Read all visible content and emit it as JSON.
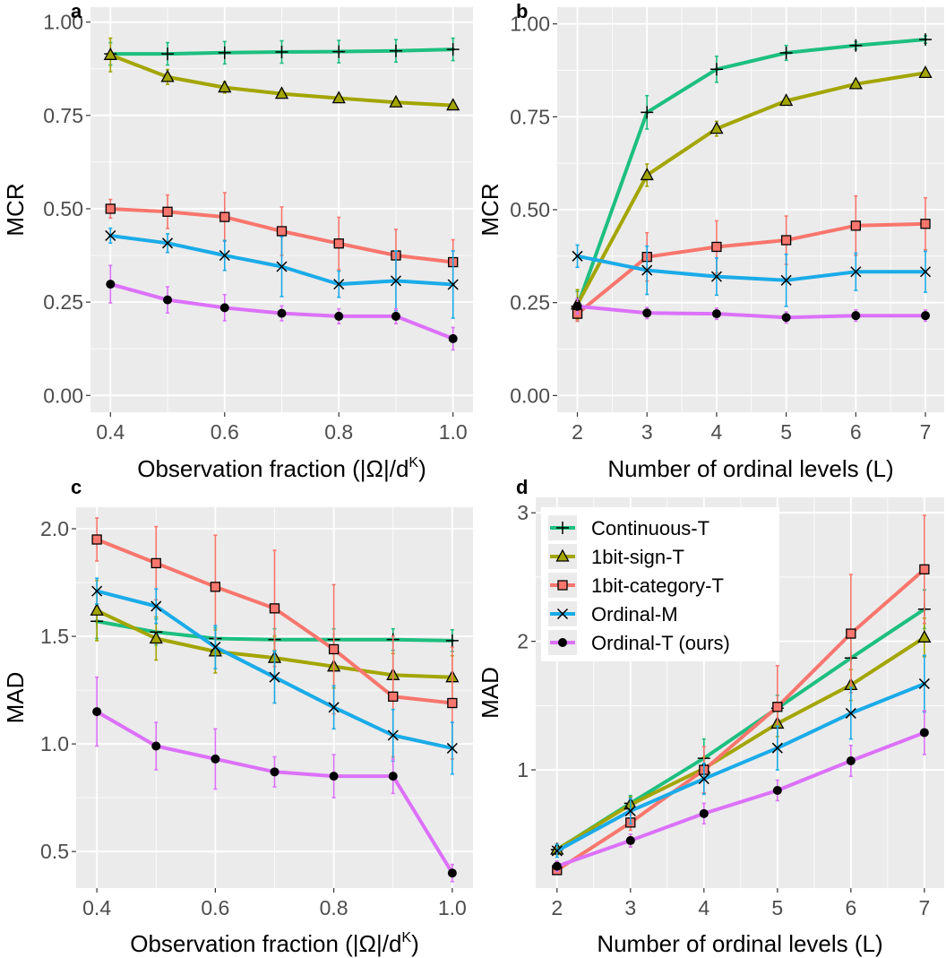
{
  "colors": {
    "Continuous-T": "#1dbf80",
    "1bit-sign-T": "#a3a500",
    "1bit-category-T": "#f8766d",
    "Ordinal-M": "#1aabe8",
    "Ordinal-T (ours)": "#dc71fa",
    "panel_bg": "#ebebeb",
    "grid": "#ffffff"
  },
  "legend": {
    "panel": "d",
    "entries": [
      {
        "label": "Continuous-T",
        "marker": "plus"
      },
      {
        "label": "1bit-sign-T",
        "marker": "triangle"
      },
      {
        "label": "1bit-category-T",
        "marker": "square"
      },
      {
        "label": "Ordinal-M",
        "marker": "cross"
      },
      {
        "label": "Ordinal-T (ours)",
        "marker": "dot"
      }
    ]
  },
  "chart_data": [
    {
      "panel": "a",
      "type": "line",
      "xlabel": "Observation fraction (|Ω|/d",
      "xlabel_sup": "K",
      "xlabel_close": ")",
      "ylabel": "MCR",
      "xlim": [
        0.365,
        1.035
      ],
      "ylim": [
        -0.045,
        1.04
      ],
      "xticks": [
        0.4,
        0.6,
        0.8,
        1.0
      ],
      "xtick_labels": [
        "0.4",
        "0.6",
        "0.8",
        "1.0"
      ],
      "yticks": [
        0.0,
        0.25,
        0.5,
        0.75,
        1.0
      ],
      "ytick_labels": [
        "0.00",
        "0.25",
        "0.50",
        "0.75",
        "1.00"
      ],
      "x": [
        0.4,
        0.5,
        0.6,
        0.7,
        0.8,
        0.9,
        1.0
      ],
      "series": [
        {
          "name": "Continuous-T",
          "marker": "plus",
          "values": [
            0.915,
            0.915,
            0.918,
            0.92,
            0.921,
            0.923,
            0.927
          ],
          "err": [
            0.03,
            0.03,
            0.03,
            0.03,
            0.03,
            0.03,
            0.03
          ]
        },
        {
          "name": "1bit-sign-T",
          "marker": "triangle",
          "values": [
            0.912,
            0.853,
            0.825,
            0.808,
            0.796,
            0.785,
            0.777
          ],
          "err": [
            0.045,
            0.02,
            0.015,
            0.01,
            0.01,
            0.01,
            0.01
          ]
        },
        {
          "name": "1bit-category-T",
          "marker": "square",
          "values": [
            0.5,
            0.492,
            0.478,
            0.44,
            0.407,
            0.375,
            0.357
          ],
          "err": [
            0.025,
            0.045,
            0.065,
            0.065,
            0.07,
            0.07,
            0.06
          ]
        },
        {
          "name": "Ordinal-M",
          "marker": "cross",
          "values": [
            0.428,
            0.408,
            0.375,
            0.345,
            0.298,
            0.307,
            0.297
          ],
          "err": [
            0.02,
            0.025,
            0.04,
            0.08,
            0.035,
            0.08,
            0.09
          ]
        },
        {
          "name": "Ordinal-T (ours)",
          "marker": "dot",
          "values": [
            0.298,
            0.256,
            0.235,
            0.22,
            0.212,
            0.212,
            0.152
          ],
          "err": [
            0.05,
            0.035,
            0.035,
            0.02,
            0.02,
            0.02,
            0.03
          ]
        }
      ]
    },
    {
      "panel": "b",
      "type": "line",
      "xlabel": "Number of ordinal levels (L)",
      "ylabel": "MCR",
      "xlim": [
        1.71,
        7.27
      ],
      "ylim": [
        -0.045,
        1.045
      ],
      "xticks": [
        2,
        3,
        4,
        5,
        6,
        7
      ],
      "xtick_labels": [
        "2",
        "3",
        "4",
        "5",
        "6",
        "7"
      ],
      "yticks": [
        0.0,
        0.25,
        0.5,
        0.75,
        1.0
      ],
      "ytick_labels": [
        "0.00",
        "0.25",
        "0.50",
        "0.75",
        "1.00"
      ],
      "x": [
        2,
        3,
        4,
        5,
        6,
        7
      ],
      "series": [
        {
          "name": "Continuous-T",
          "marker": "plus",
          "values": [
            0.24,
            0.762,
            0.878,
            0.922,
            0.942,
            0.958
          ],
          "err": [
            0.04,
            0.045,
            0.035,
            0.02,
            0.01,
            0.01
          ]
        },
        {
          "name": "1bit-sign-T",
          "marker": "triangle",
          "values": [
            0.245,
            0.593,
            0.718,
            0.793,
            0.838,
            0.868
          ],
          "err": [
            0.04,
            0.03,
            0.02,
            0.01,
            0.01,
            0.01
          ]
        },
        {
          "name": "1bit-category-T",
          "marker": "square",
          "values": [
            0.22,
            0.373,
            0.4,
            0.418,
            0.457,
            0.462
          ],
          "err": [
            0.02,
            0.065,
            0.07,
            0.065,
            0.08,
            0.07
          ]
        },
        {
          "name": "Ordinal-M",
          "marker": "cross",
          "values": [
            0.375,
            0.337,
            0.32,
            0.31,
            0.333,
            0.333
          ],
          "err": [
            0.03,
            0.065,
            0.05,
            0.07,
            0.05,
            0.055
          ]
        },
        {
          "name": "Ordinal-T (ours)",
          "marker": "dot",
          "values": [
            0.24,
            0.222,
            0.22,
            0.21,
            0.215,
            0.215
          ],
          "err": [
            0.02,
            0.015,
            0.015,
            0.015,
            0.015,
            0.015
          ]
        }
      ]
    },
    {
      "panel": "c",
      "type": "line",
      "xlabel": "Observation fraction (|Ω|/d",
      "xlabel_sup": "K",
      "xlabel_close": ")",
      "ylabel": "MAD",
      "xlim": [
        0.365,
        1.035
      ],
      "ylim": [
        0.33,
        2.1
      ],
      "xticks": [
        0.4,
        0.6,
        0.8,
        1.0
      ],
      "xtick_labels": [
        "0.4",
        "0.6",
        "0.8",
        "1.0"
      ],
      "yticks": [
        0.5,
        1.0,
        1.5,
        2.0
      ],
      "ytick_labels": [
        "0.5",
        "1.0",
        "1.5",
        "2.0"
      ],
      "x": [
        0.4,
        0.5,
        0.6,
        0.7,
        0.8,
        0.9,
        1.0
      ],
      "series": [
        {
          "name": "Continuous-T",
          "marker": "plus",
          "values": [
            1.57,
            1.52,
            1.49,
            1.485,
            1.485,
            1.485,
            1.48
          ],
          "err": [
            0.08,
            0.06,
            0.05,
            0.05,
            0.05,
            0.05,
            0.05
          ]
        },
        {
          "name": "1bit-sign-T",
          "marker": "triangle",
          "values": [
            1.62,
            1.49,
            1.43,
            1.4,
            1.36,
            1.32,
            1.31
          ],
          "err": [
            0.14,
            0.1,
            0.1,
            0.1,
            0.1,
            0.1,
            0.1
          ]
        },
        {
          "name": "1bit-category-T",
          "marker": "square",
          "values": [
            1.95,
            1.84,
            1.73,
            1.63,
            1.44,
            1.22,
            1.19
          ],
          "err": [
            0.1,
            0.17,
            0.24,
            0.27,
            0.3,
            0.28,
            0.26
          ]
        },
        {
          "name": "Ordinal-M",
          "marker": "cross",
          "values": [
            1.71,
            1.64,
            1.45,
            1.31,
            1.17,
            1.04,
            0.98
          ],
          "err": [
            0.06,
            0.08,
            0.1,
            0.12,
            0.1,
            0.12,
            0.12
          ]
        },
        {
          "name": "Ordinal-T (ours)",
          "marker": "dot",
          "values": [
            1.15,
            0.99,
            0.93,
            0.87,
            0.85,
            0.85,
            0.4
          ],
          "err": [
            0.16,
            0.11,
            0.14,
            0.07,
            0.1,
            0.08,
            0.04
          ]
        }
      ]
    },
    {
      "panel": "d",
      "type": "line",
      "xlabel": "Number of ordinal levels (L)",
      "ylabel": "MAD",
      "xlim": [
        1.71,
        7.27
      ],
      "ylim": [
        0.08,
        3.12
      ],
      "xticks": [
        2,
        3,
        4,
        5,
        6,
        7
      ],
      "xtick_labels": [
        "2",
        "3",
        "4",
        "5",
        "6",
        "7"
      ],
      "yticks": [
        1,
        2,
        3
      ],
      "ytick_labels": [
        "1",
        "2",
        "3"
      ],
      "x": [
        2,
        3,
        4,
        5,
        6,
        7
      ],
      "series": [
        {
          "name": "Continuous-T",
          "marker": "plus",
          "values": [
            0.38,
            0.74,
            1.09,
            1.48,
            1.87,
            2.25
          ],
          "err": [
            0.04,
            0.06,
            0.15,
            0.1,
            0.2,
            0.15
          ]
        },
        {
          "name": "1bit-sign-T",
          "marker": "triangle",
          "values": [
            0.38,
            0.73,
            1.01,
            1.36,
            1.66,
            2.03
          ],
          "err": [
            0.04,
            0.06,
            0.09,
            0.1,
            0.12,
            0.15
          ]
        },
        {
          "name": "1bit-category-T",
          "marker": "square",
          "values": [
            0.22,
            0.59,
            1.0,
            1.49,
            2.06,
            2.56
          ],
          "err": [
            0.03,
            0.06,
            0.18,
            0.32,
            0.46,
            0.42
          ]
        },
        {
          "name": "Ordinal-M",
          "marker": "cross",
          "values": [
            0.37,
            0.68,
            0.93,
            1.17,
            1.44,
            1.67
          ],
          "err": [
            0.05,
            0.1,
            0.12,
            0.17,
            0.2,
            0.22
          ]
        },
        {
          "name": "Ordinal-T (ours)",
          "marker": "dot",
          "values": [
            0.25,
            0.45,
            0.66,
            0.84,
            1.07,
            1.29
          ],
          "err": [
            0.04,
            0.05,
            0.08,
            0.08,
            0.12,
            0.17
          ]
        }
      ]
    }
  ]
}
